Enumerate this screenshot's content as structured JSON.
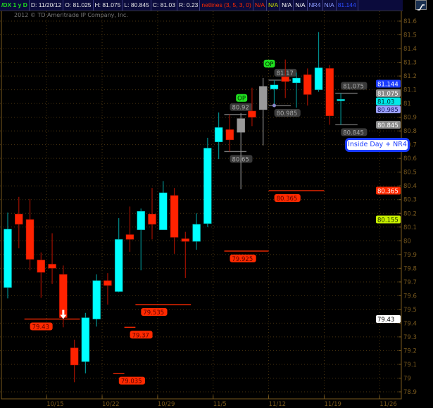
{
  "header": {
    "symbol": "/DX 1 y D",
    "date": "D: 11/20/12",
    "open": "O: 81.025",
    "high": "H: 81.075",
    "low": "L: 80.845",
    "close": "C: 81.03",
    "range": "R: 0.23",
    "study": "netlines (3, 5, 3, 0)",
    "cells": [
      {
        "text": "N/A",
        "color": "#ff2a00"
      },
      {
        "text": "N/A",
        "color": "#c8e000"
      },
      {
        "text": "N/A",
        "color": "#ffffff"
      },
      {
        "text": "N/A",
        "color": "#ffffff"
      },
      {
        "text": "NR4",
        "color": "#8c9cff"
      },
      {
        "text": "N/A",
        "color": "#8c9cff"
      },
      {
        "text": "81.144",
        "color": "#2c4cff"
      }
    ],
    "chart_style_icon": "line-chart-icon"
  },
  "watermark": "2012 © TD Ameritrade IP Company, Inc.",
  "colors": {
    "up": "#00ffff",
    "down": "#ff2200",
    "neutral": "#999999",
    "axis": "#7a5a1e"
  },
  "chart_data": {
    "type": "candlestick",
    "ylim": [
      78.9,
      81.6
    ],
    "y_ticks": [
      "78.9",
      "79",
      "79.1",
      "79.2",
      "79.3",
      "79.4",
      "79.5",
      "79.6",
      "79.7",
      "79.8",
      "79.9",
      "80",
      "80.1",
      "80.2",
      "80.3",
      "80.4",
      "80.5",
      "80.6",
      "80.7",
      "80.8",
      "80.9",
      "81",
      "81.1",
      "81.2",
      "81.3",
      "81.4",
      "81.5",
      "81.6"
    ],
    "x_ticks": [
      "10/15",
      "10/22",
      "10/29",
      "11/5",
      "11/12",
      "11/19",
      "11/26"
    ],
    "grid": true,
    "candles": [
      {
        "date": "10/9",
        "o": 79.66,
        "h": 80.205,
        "l": 79.58,
        "c": 80.085,
        "color": "up"
      },
      {
        "date": "10/10",
        "o": 80.195,
        "h": 80.32,
        "l": 79.945,
        "c": 80.12,
        "color": "down"
      },
      {
        "date": "10/11",
        "o": 80.155,
        "h": 80.305,
        "l": 79.785,
        "c": 79.865,
        "color": "down"
      },
      {
        "date": "10/12",
        "o": 79.86,
        "h": 79.915,
        "l": 79.585,
        "c": 79.77,
        "color": "down"
      },
      {
        "date": "10/15",
        "o": 79.83,
        "h": 80.055,
        "l": 79.685,
        "c": 79.8,
        "color": "down"
      },
      {
        "date": "10/16",
        "o": 79.755,
        "h": 79.82,
        "l": 79.37,
        "c": 79.44,
        "color": "down"
      },
      {
        "date": "10/17",
        "o": 79.22,
        "h": 79.28,
        "l": 78.97,
        "c": 79.095,
        "color": "down"
      },
      {
        "date": "10/18",
        "o": 79.12,
        "h": 79.475,
        "l": 79.035,
        "c": 79.44,
        "color": "up"
      },
      {
        "date": "10/19",
        "o": 79.43,
        "h": 79.755,
        "l": 79.375,
        "c": 79.71,
        "color": "up"
      },
      {
        "date": "10/22",
        "o": 79.71,
        "h": 79.765,
        "l": 79.535,
        "c": 79.675,
        "color": "down"
      },
      {
        "date": "10/23",
        "o": 79.63,
        "h": 80.165,
        "l": 79.625,
        "c": 80.01,
        "color": "up"
      },
      {
        "date": "10/24",
        "o": 80.045,
        "h": 80.25,
        "l": 79.92,
        "c": 80.01,
        "color": "down"
      },
      {
        "date": "10/25",
        "o": 80.08,
        "h": 80.235,
        "l": 79.785,
        "c": 80.215,
        "color": "up"
      },
      {
        "date": "10/26",
        "o": 80.195,
        "h": 80.385,
        "l": 80.01,
        "c": 80.12,
        "color": "down"
      },
      {
        "date": "10/29",
        "o": 80.08,
        "h": 80.435,
        "l": 80.08,
        "c": 80.35,
        "color": "up"
      },
      {
        "date": "10/30",
        "o": 80.33,
        "h": 80.385,
        "l": 79.905,
        "c": 80.025,
        "color": "down"
      },
      {
        "date": "10/31",
        "o": 80.015,
        "h": 80.065,
        "l": 79.73,
        "c": 79.995,
        "color": "down"
      },
      {
        "date": "11/1",
        "o": 79.995,
        "h": 80.2,
        "l": 79.935,
        "c": 80.12,
        "color": "up"
      },
      {
        "date": "11/2",
        "o": 80.125,
        "h": 80.75,
        "l": 80.1,
        "c": 80.675,
        "color": "up"
      },
      {
        "date": "11/5",
        "o": 80.72,
        "h": 80.935,
        "l": 80.595,
        "c": 80.825,
        "color": "up"
      },
      {
        "date": "11/6",
        "o": 80.81,
        "h": 80.92,
        "l": 80.65,
        "c": 80.735,
        "color": "down"
      },
      {
        "date": "11/7",
        "o": 80.79,
        "h": 80.93,
        "l": 80.375,
        "c": 80.89,
        "color": "neutral"
      },
      {
        "date": "11/8",
        "o": 80.945,
        "h": 81.115,
        "l": 80.835,
        "c": 80.9,
        "color": "down"
      },
      {
        "date": "11/9",
        "o": 80.955,
        "h": 81.185,
        "l": 80.695,
        "c": 81.125,
        "color": "neutral"
      },
      {
        "date": "11/12",
        "o": 81.105,
        "h": 81.17,
        "l": 80.985,
        "c": 81.135,
        "color": "up"
      },
      {
        "date": "11/13",
        "o": 81.195,
        "h": 81.32,
        "l": 81.04,
        "c": 81.16,
        "color": "down"
      },
      {
        "date": "11/14",
        "o": 81.15,
        "h": 81.225,
        "l": 80.97,
        "c": 81.185,
        "color": "up"
      },
      {
        "date": "11/15",
        "o": 81.21,
        "h": 81.255,
        "l": 80.985,
        "c": 81.065,
        "color": "down"
      },
      {
        "date": "11/16",
        "o": 81.1,
        "h": 81.52,
        "l": 81.085,
        "c": 81.26,
        "color": "up"
      },
      {
        "date": "11/19",
        "o": 81.255,
        "h": 81.28,
        "l": 80.845,
        "c": 80.91,
        "color": "down"
      },
      {
        "date": "11/20",
        "o": 81.025,
        "h": 81.075,
        "l": 80.845,
        "c": 81.03,
        "color": "up"
      }
    ]
  },
  "annotations": {
    "levels": [
      {
        "label": "79.43",
        "value": 79.43,
        "color": "red",
        "from": 1.5,
        "to": 6.5,
        "label_side": "below"
      },
      {
        "label": "79.37",
        "value": 79.37,
        "color": "red",
        "from": 10.5,
        "to": 11.5,
        "label_side": "below"
      },
      {
        "label": "79.035",
        "value": 79.035,
        "color": "red",
        "from": 9.5,
        "to": 10.5,
        "label_side": "below"
      },
      {
        "label": "79.535",
        "value": 79.535,
        "color": "red",
        "from": 11.5,
        "to": 16.5,
        "label_side": "below"
      },
      {
        "label": "79.925",
        "value": 79.925,
        "color": "red",
        "from": 19.5,
        "to": 23.5,
        "label_side": "below"
      },
      {
        "label": "80.365",
        "value": 80.365,
        "color": "red",
        "from": 23.5,
        "to": 28.5,
        "label_side": "below"
      },
      {
        "label": "80.92",
        "value": 80.92,
        "color": "gray",
        "from": 19.5,
        "to": 21.5,
        "label_side": "above"
      },
      {
        "label": "80.65",
        "value": 80.65,
        "color": "gray",
        "from": 19.5,
        "to": 21.5,
        "label_side": "below"
      },
      {
        "label": "81.17",
        "value": 81.17,
        "color": "gray",
        "from": 23.5,
        "to": 25.5,
        "label_side": "above"
      },
      {
        "label": "80.985",
        "value": 80.985,
        "color": "gray",
        "from": 23.5,
        "to": 25.5,
        "label_side": "below"
      },
      {
        "label": "81.075",
        "value": 81.075,
        "color": "gray",
        "from": 29.5,
        "to": 31.5,
        "label_side": "above"
      },
      {
        "label": "80.845",
        "value": 80.845,
        "color": "gray",
        "from": 29.5,
        "to": 31.5,
        "label_side": "below"
      }
    ],
    "op_markers": [
      {
        "label": "OP",
        "candle": 21,
        "value": 80.99
      },
      {
        "label": "OP",
        "candle": 23.5,
        "value": 81.245
      }
    ],
    "arrow": {
      "icon": "down-arrow-icon",
      "candle": 5,
      "value": 79.43
    },
    "pattern_label": "Inside Day + NR4"
  },
  "price_markers": [
    {
      "text": "81.144",
      "value": 81.144,
      "bg": "#1b3cff",
      "fg": "#ffffff"
    },
    {
      "text": "81.075",
      "value": 81.075,
      "bg": "#8a8a8a",
      "fg": "#ffffff"
    },
    {
      "text": "81.03",
      "value": 81.03,
      "bg": "#00e8e8",
      "fg": "#003030"
    },
    {
      "text": "80.985",
      "value": 80.985,
      "bg": "#9aa0ff",
      "fg": "#1a1a60"
    },
    {
      "text": "80.845",
      "value": 80.845,
      "bg": "#8a8a8a",
      "fg": "#ffffff"
    },
    {
      "text": "80.365",
      "value": 80.365,
      "bg": "#ff2a00",
      "fg": "#ffffff"
    },
    {
      "text": "80.155",
      "value": 80.155,
      "bg": "#c8f000",
      "fg": "#203000"
    },
    {
      "text": "79.43",
      "value": 79.43,
      "bg": "#ffffff",
      "fg": "#000000"
    }
  ]
}
